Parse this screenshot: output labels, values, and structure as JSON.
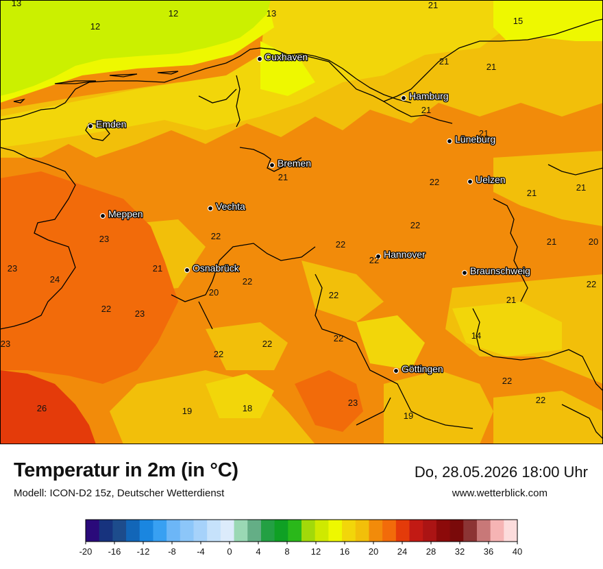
{
  "title": "Temperatur in 2m (in °C)",
  "model": "Modell: ICON-D2 15z, Deutscher Wetterdienst",
  "datetime": "Do, 28.05.2026 18:00 Uhr",
  "website": "www.wetterblick.com",
  "cities": [
    {
      "name": "Cuxhaven"
    },
    {
      "name": "Hamburg"
    },
    {
      "name": "Emden"
    },
    {
      "name": "Lüneburg"
    },
    {
      "name": "Bremen"
    },
    {
      "name": "Uelzen"
    },
    {
      "name": "Vechta"
    },
    {
      "name": "Meppen"
    },
    {
      "name": "Osnabrück"
    },
    {
      "name": "Hannover"
    },
    {
      "name": "Braunschweig"
    },
    {
      "name": "Göttingen"
    }
  ],
  "temperature_values": [
    "13",
    "12",
    "13",
    "21",
    "15",
    "12",
    "21",
    "21",
    "21",
    "21",
    "21",
    "22",
    "21",
    "21",
    "22",
    "23",
    "21",
    "20",
    "22",
    "22",
    "21",
    "22",
    "23",
    "24",
    "22",
    "21",
    "22",
    "20",
    "22",
    "22",
    "23",
    "22",
    "14",
    "23",
    "22",
    "22",
    "26",
    "19",
    "18",
    "23",
    "22",
    "22",
    "19"
  ],
  "legend": {
    "ticks": [
      "-20",
      "-16",
      "-12",
      "-8",
      "-4",
      "0",
      "4",
      "8",
      "12",
      "16",
      "20",
      "24",
      "28",
      "32",
      "36",
      "40"
    ],
    "colors": [
      "#2a0a7a",
      "#17337e",
      "#1d4c8c",
      "#1266b8",
      "#1a86e0",
      "#38a0f2",
      "#6cb6f7",
      "#8cc6f9",
      "#a6d2fa",
      "#c6e2fb",
      "#dcebfb",
      "#9ad8b4",
      "#64ae86",
      "#23a043",
      "#0fa024",
      "#2ab81a",
      "#a2d90a",
      "#cfe900",
      "#eef800",
      "#f2d60a",
      "#f2bf0a",
      "#f28b0a",
      "#f26b0a",
      "#e43b0a",
      "#c21a14",
      "#ab1414",
      "#8c0a0a",
      "#7a0a0a",
      "#8c3434",
      "#c87878",
      "#f6b4b4",
      "#fcdcdc"
    ]
  },
  "colors": {
    "sea": "#cbf000",
    "coast_band": "#eef800",
    "inland_yellow": "#f2d60a",
    "warm": "#f2bf0a",
    "orange": "#f28b0a",
    "hot": "#f26b0a",
    "very_hot": "#e43b0a"
  }
}
